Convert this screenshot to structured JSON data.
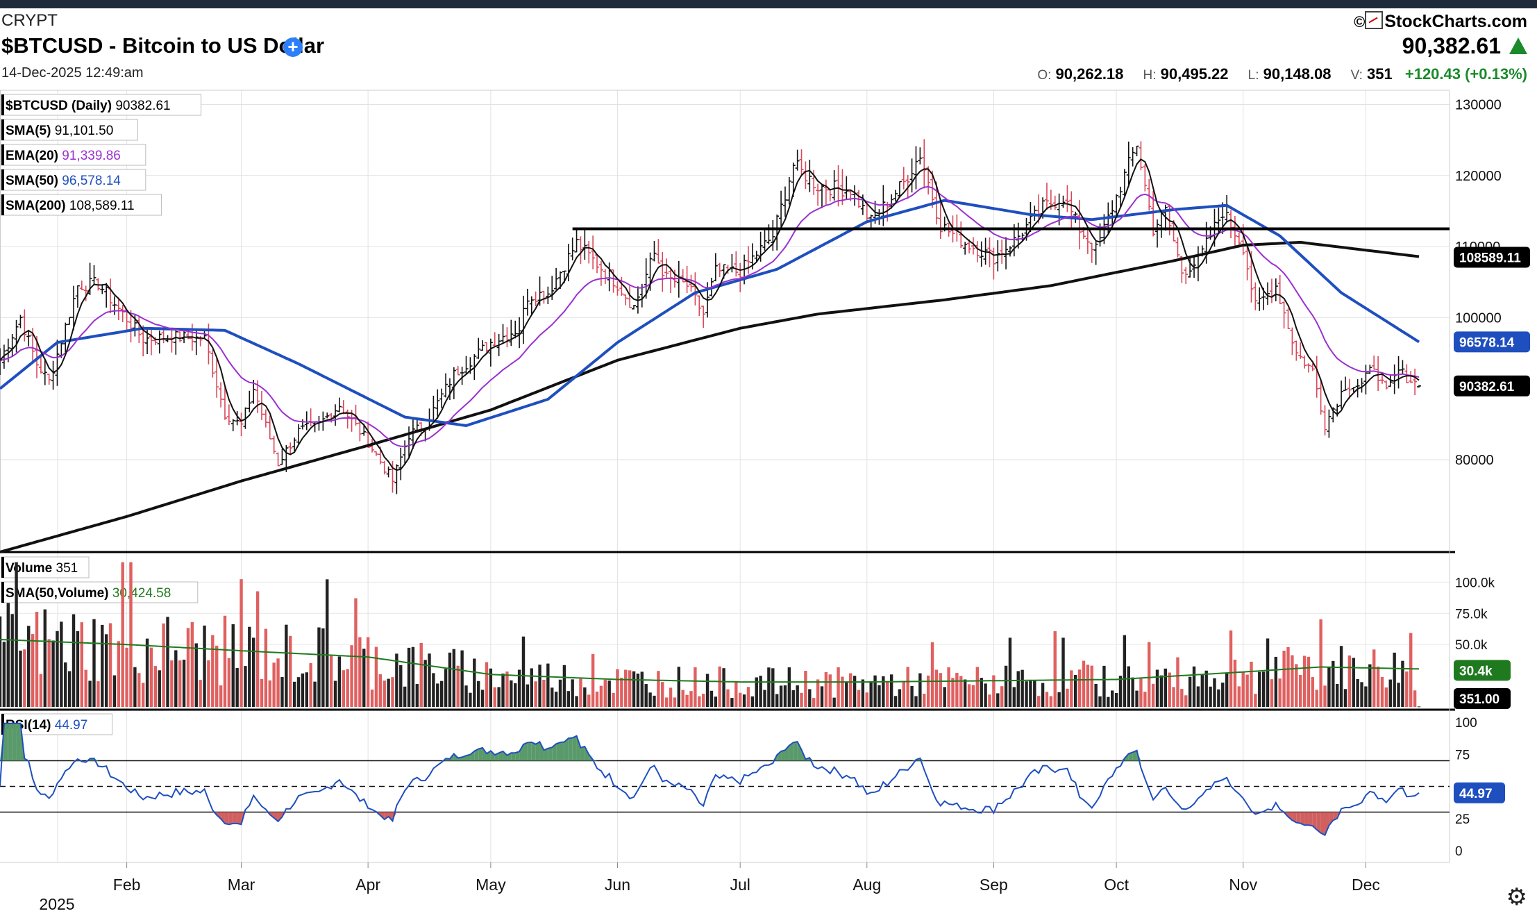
{
  "header": {
    "exchange": "CRYPT",
    "title": "$BTCUSD - Bitcoin to US Dollar",
    "datetime": "14-Dec-2025 12:49:am",
    "brand": "StockCharts.com",
    "last_price": "90,382.61",
    "ohlc": {
      "o_label": "O:",
      "o": "90,262.18",
      "h_label": "H:",
      "h": "90,495.22",
      "l_label": "L:",
      "l": "90,148.08",
      "v_label": "V:",
      "v": "351",
      "change": "+120.43 (+0.13%)"
    },
    "up_color": "#1a8a2a"
  },
  "chart_data": [
    {
      "type": "candlestick",
      "panel": "price",
      "legend": [
        {
          "label": "$BTCUSD (Daily)",
          "value": "90382.61",
          "color": "#000000"
        },
        {
          "label": "SMA(5)",
          "value": "91,101.50",
          "color": "#000000"
        },
        {
          "label": "EMA(20)",
          "value": "91,339.86",
          "color": "#9b30d0"
        },
        {
          "label": "SMA(50)",
          "value": "96,578.14",
          "color": "#1f4fbf"
        },
        {
          "label": "SMA(200)",
          "value": "108,589.11",
          "color": "#000000"
        }
      ],
      "y_ticks": [
        "130000",
        "120000",
        "110000",
        "100000",
        "80000"
      ],
      "y_tick_values": [
        130000,
        120000,
        110000,
        100000,
        80000
      ],
      "ylim": [
        67000,
        132000
      ],
      "x_ticks": [
        "Feb",
        "Mar",
        "Apr",
        "May",
        "Jun",
        "Jul",
        "Aug",
        "Sep",
        "Oct",
        "Nov",
        "Dec"
      ],
      "year_label": "2025",
      "date_range": [
        "2025-01-01",
        "2025-12-14"
      ],
      "price_anchors": [
        [
          "2025-01-01",
          94000
        ],
        [
          "2025-01-06",
          100000
        ],
        [
          "2025-01-10",
          93500
        ],
        [
          "2025-01-13",
          91000
        ],
        [
          "2025-01-20",
          104500
        ],
        [
          "2025-01-25",
          104800
        ],
        [
          "2025-01-31",
          100500
        ],
        [
          "2025-02-05",
          97000
        ],
        [
          "2025-02-12",
          97300
        ],
        [
          "2025-02-20",
          97000
        ],
        [
          "2025-02-25",
          86500
        ],
        [
          "2025-03-01",
          84800
        ],
        [
          "2025-03-04",
          90000
        ],
        [
          "2025-03-10",
          79500
        ],
        [
          "2025-03-15",
          84000
        ],
        [
          "2025-03-20",
          85000
        ],
        [
          "2025-03-25",
          87700
        ],
        [
          "2025-04-01",
          82500
        ],
        [
          "2025-04-07",
          77000
        ],
        [
          "2025-04-11",
          83500
        ],
        [
          "2025-04-15",
          85000
        ],
        [
          "2025-04-22",
          92000
        ],
        [
          "2025-05-01",
          96500
        ],
        [
          "2025-05-08",
          98500
        ],
        [
          "2025-05-10",
          103000
        ],
        [
          "2025-05-15",
          103500
        ],
        [
          "2025-05-22",
          110500
        ],
        [
          "2025-05-25",
          108700
        ],
        [
          "2025-06-01",
          104700
        ],
        [
          "2025-06-05",
          101500
        ],
        [
          "2025-06-10",
          109000
        ],
        [
          "2025-06-13",
          105500
        ],
        [
          "2025-06-18",
          104500
        ],
        [
          "2025-06-22",
          100500
        ],
        [
          "2025-06-25",
          106500
        ],
        [
          "2025-07-01",
          106500
        ],
        [
          "2025-07-09",
          111500
        ],
        [
          "2025-07-14",
          121500
        ],
        [
          "2025-07-20",
          118500
        ],
        [
          "2025-07-28",
          118000
        ],
        [
          "2025-08-02",
          113500
        ],
        [
          "2025-08-10",
          119000
        ],
        [
          "2025-08-14",
          123000
        ],
        [
          "2025-08-19",
          113000
        ],
        [
          "2025-08-25",
          110500
        ],
        [
          "2025-09-01",
          108500
        ],
        [
          "2025-09-06",
          110800
        ],
        [
          "2025-09-13",
          115500
        ],
        [
          "2025-09-18",
          117000
        ],
        [
          "2025-09-22",
          112500
        ],
        [
          "2025-09-26",
          109500
        ],
        [
          "2025-10-02",
          118500
        ],
        [
          "2025-10-06",
          124500
        ],
        [
          "2025-10-10",
          112500
        ],
        [
          "2025-10-13",
          115000
        ],
        [
          "2025-10-17",
          106500
        ],
        [
          "2025-10-21",
          108000
        ],
        [
          "2025-10-27",
          115000
        ],
        [
          "2025-11-01",
          110000
        ],
        [
          "2025-11-04",
          101500
        ],
        [
          "2025-11-09",
          104500
        ],
        [
          "2025-11-14",
          95000
        ],
        [
          "2025-11-18",
          92500
        ],
        [
          "2025-11-21",
          85000
        ],
        [
          "2025-11-26",
          90500
        ],
        [
          "2025-11-30",
          90500
        ],
        [
          "2025-12-03",
          93300
        ],
        [
          "2025-12-06",
          89300
        ],
        [
          "2025-12-09",
          92500
        ],
        [
          "2025-12-14",
          90382
        ]
      ],
      "sma50_anchors": [
        [
          "2025-01-01",
          90000
        ],
        [
          "2025-01-15",
          96500
        ],
        [
          "2025-02-05",
          98500
        ],
        [
          "2025-02-25",
          98200
        ],
        [
          "2025-03-15",
          93500
        ],
        [
          "2025-04-10",
          86000
        ],
        [
          "2025-04-25",
          84800
        ],
        [
          "2025-05-15",
          88500
        ],
        [
          "2025-06-01",
          96500
        ],
        [
          "2025-06-20",
          103500
        ],
        [
          "2025-07-10",
          106800
        ],
        [
          "2025-08-01",
          113500
        ],
        [
          "2025-08-20",
          116500
        ],
        [
          "2025-09-10",
          114500
        ],
        [
          "2025-09-25",
          113800
        ],
        [
          "2025-10-15",
          115200
        ],
        [
          "2025-10-28",
          115800
        ],
        [
          "2025-11-10",
          111500
        ],
        [
          "2025-11-25",
          103500
        ],
        [
          "2025-12-14",
          96578
        ]
      ],
      "sma200_anchors": [
        [
          "2025-01-01",
          67000
        ],
        [
          "2025-02-01",
          72000
        ],
        [
          "2025-03-01",
          77000
        ],
        [
          "2025-04-01",
          82000
        ],
        [
          "2025-05-01",
          87000
        ],
        [
          "2025-06-01",
          94000
        ],
        [
          "2025-07-01",
          98500
        ],
        [
          "2025-07-20",
          100500
        ],
        [
          "2025-08-20",
          102500
        ],
        [
          "2025-09-15",
          104500
        ],
        [
          "2025-10-15",
          108000
        ],
        [
          "2025-11-01",
          110200
        ],
        [
          "2025-11-15",
          110600
        ],
        [
          "2025-12-14",
          108589
        ]
      ],
      "resistance_level": 112500,
      "resistance_from": "2025-05-21",
      "last_tags": [
        {
          "label": "108589.11",
          "value": 108589.11,
          "bg": "#000000"
        },
        {
          "label": "96578.14",
          "value": 96578.14,
          "bg": "#1f4fbf"
        },
        {
          "label": "90382.61",
          "value": 90382.61,
          "bg": "#000000"
        }
      ]
    },
    {
      "type": "bar",
      "panel": "volume",
      "legend": [
        {
          "label": "Volume",
          "value": "351",
          "color": "#000000"
        },
        {
          "label": "SMA(50,Volume)",
          "value": "30,424.58",
          "color": "#1f7a1f"
        }
      ],
      "y_ticks": [
        "100.0k",
        "75.0k",
        "50.0k"
      ],
      "y_tick_values": [
        100000,
        75000,
        50000
      ],
      "ylim": [
        0,
        118000
      ],
      "sma_anchors": [
        [
          "2025-01-01",
          54000
        ],
        [
          "2025-02-01",
          50000
        ],
        [
          "2025-03-01",
          45000
        ],
        [
          "2025-04-01",
          40000
        ],
        [
          "2025-05-01",
          26000
        ],
        [
          "2025-06-01",
          22000
        ],
        [
          "2025-07-01",
          20000
        ],
        [
          "2025-08-01",
          20000
        ],
        [
          "2025-09-01",
          21000
        ],
        [
          "2025-10-01",
          22000
        ],
        [
          "2025-11-01",
          28000
        ],
        [
          "2025-11-20",
          32000
        ],
        [
          "2025-12-14",
          30425
        ]
      ],
      "last_tags": [
        {
          "label": "30.4k",
          "value": 30424.58,
          "bg": "#1f7a1f"
        },
        {
          "label": "351.00",
          "value": 351,
          "bg": "#000000"
        }
      ],
      "up_color": "#e06060",
      "down_color": "#222222"
    },
    {
      "type": "line",
      "panel": "rsi",
      "legend": [
        {
          "label": "RSI(14)",
          "value": "44.97",
          "color": "#1f4fbf"
        }
      ],
      "y_ticks": [
        "100",
        "75",
        "25",
        "0"
      ],
      "y_tick_values": [
        100,
        75,
        25,
        0
      ],
      "ylim": [
        0,
        100
      ],
      "levels": [
        70,
        50,
        30
      ],
      "last_tag": {
        "label": "44.97",
        "value": 44.97,
        "bg": "#1f4fbf"
      },
      "overbought_fill": "#5a9a6a",
      "oversold_fill": "#d06060"
    }
  ]
}
